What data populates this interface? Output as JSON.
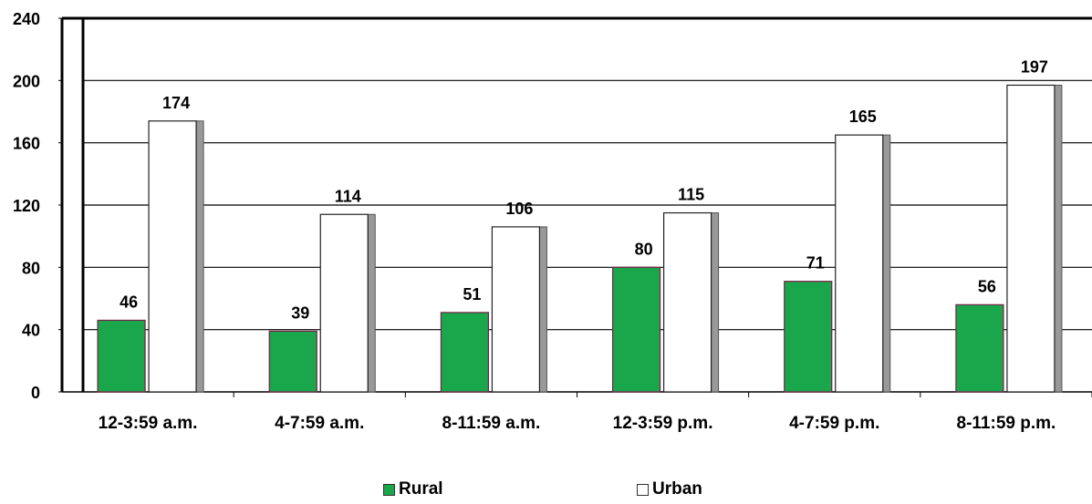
{
  "chart_data": {
    "type": "bar",
    "categories": [
      "12-3:59 a.m.",
      "4-7:59 a.m.",
      "8-11:59 a.m.",
      "12-3:59 p.m.",
      "4-7:59 p.m.",
      "8-11:59 p.m."
    ],
    "series": [
      {
        "name": "Rural",
        "values": [
          46,
          39,
          51,
          80,
          71,
          56
        ],
        "color": "#1aa64b"
      },
      {
        "name": "Urban",
        "values": [
          174,
          114,
          106,
          115,
          165,
          197
        ],
        "color": "#ffffff"
      }
    ],
    "ylim": [
      0,
      240
    ],
    "yticks": [
      "0",
      "40",
      "80",
      "120",
      "160",
      "200",
      "240"
    ],
    "grid": true,
    "legend_position": "bottom",
    "bar_shadow_color": "#999999"
  }
}
